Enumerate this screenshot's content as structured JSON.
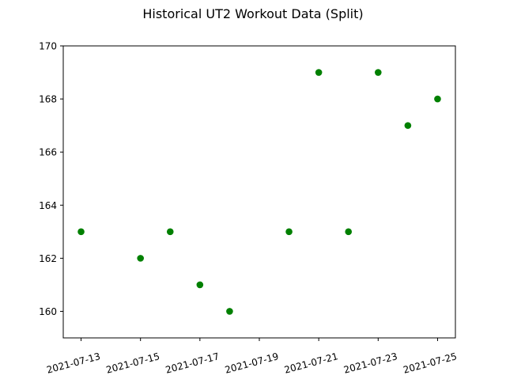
{
  "chart_data": {
    "type": "scatter",
    "title": "Historical UT2 Workout Data (Split)",
    "xlabel": "",
    "ylabel": "",
    "x_type": "date",
    "xlim": [
      "2021-07-12",
      "2021-07-25"
    ],
    "ylim": [
      159,
      170
    ],
    "xticks": [
      "2021-07-13",
      "2021-07-15",
      "2021-07-17",
      "2021-07-19",
      "2021-07-21",
      "2021-07-23",
      "2021-07-25"
    ],
    "yticks": [
      160,
      162,
      164,
      166,
      168,
      170
    ],
    "grid": false,
    "series": [
      {
        "color": "#008000",
        "points": [
          {
            "x": "2021-07-13",
            "y": 163
          },
          {
            "x": "2021-07-15",
            "y": 162
          },
          {
            "x": "2021-07-16",
            "y": 163
          },
          {
            "x": "2021-07-17",
            "y": 161
          },
          {
            "x": "2021-07-18",
            "y": 160
          },
          {
            "x": "2021-07-20",
            "y": 163
          },
          {
            "x": "2021-07-21",
            "y": 169
          },
          {
            "x": "2021-07-22",
            "y": 163
          },
          {
            "x": "2021-07-23",
            "y": 169
          },
          {
            "x": "2021-07-24",
            "y": 167
          },
          {
            "x": "2021-07-25",
            "y": 168
          }
        ]
      }
    ]
  }
}
